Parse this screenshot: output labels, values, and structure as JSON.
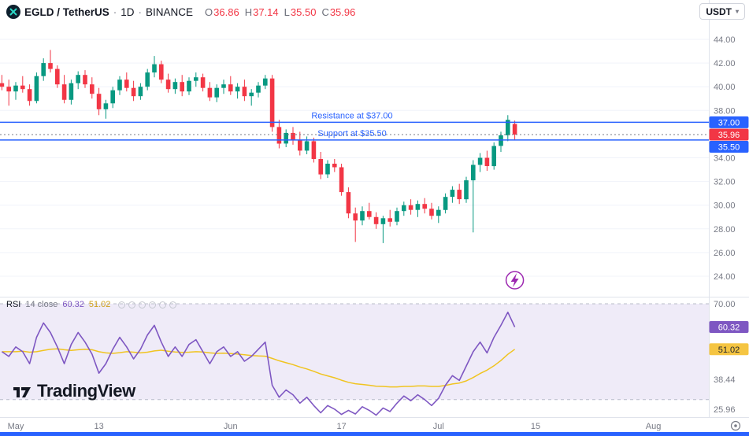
{
  "header": {
    "symbol": "EGLD / TetherUS",
    "dot1": "·",
    "interval": "1D",
    "dot2": "·",
    "exchange": "BINANCE",
    "ohlc": [
      {
        "label": "O",
        "value": "36.86"
      },
      {
        "label": "H",
        "value": "37.14"
      },
      {
        "label": "L",
        "value": "35.50"
      },
      {
        "label": "C",
        "value": "35.96"
      }
    ],
    "currency": "USDT"
  },
  "icons": {
    "chevron_down": "▾"
  },
  "rsi_header": {
    "title": "RSI",
    "params": "14 close",
    "value": "60.32",
    "ma_value": "51.02"
  },
  "watermark": "TradingView",
  "colors": {
    "up": "#089981",
    "down": "#f23645",
    "level": "#2962ff",
    "last_price_line": "#787b86",
    "grid": "#f0f3fa",
    "axis_text": "#787b86",
    "band_fill": "rgba(126,87,194,0.12)",
    "band_line": "#b8bcc9",
    "rsi": "#7e57c2",
    "rsi_ma": "#f0c420",
    "rsi_value_text": "#7e57c2",
    "rsi_ma_value_text": "#cfa019",
    "lightning": "#9c27b0",
    "accent_bar": "#2962ff"
  },
  "chart_data": {
    "type": "candlestick",
    "title": "EGLD / TetherUS · 1D · BINANCE",
    "interval": "1D",
    "last_price": 35.96,
    "levels": [
      {
        "label": "Resistance at $37.00",
        "value": 37.0
      },
      {
        "label": "Support at $35.50",
        "value": 35.5
      }
    ],
    "y_axis": {
      "ticks": [
        44,
        42,
        40,
        38,
        34,
        32,
        30,
        28,
        26,
        24
      ],
      "visible_range": [
        24,
        44
      ]
    },
    "x_axis": {
      "labels": [
        {
          "text": "May",
          "day": 0
        },
        {
          "text": "13",
          "day": 12
        },
        {
          "text": "Jun",
          "day": 31
        },
        {
          "text": "17",
          "day": 47
        },
        {
          "text": "Jul",
          "day": 61
        },
        {
          "text": "15",
          "day": 75
        },
        {
          "text": "Aug",
          "day": 92
        }
      ]
    },
    "price_badges": [
      {
        "text": "37.00",
        "value": 37.0,
        "bg": "#2962ff",
        "fg": "#ffffff"
      },
      {
        "text": "35.96",
        "value": 35.96,
        "bg": "#f23645",
        "fg": "#ffffff"
      },
      {
        "text": "35.50",
        "value": 35.5,
        "bg": "#2962ff",
        "fg": "#ffffff"
      }
    ],
    "rsi_badges": [
      {
        "text": "60.32",
        "value": 60.32,
        "bg": "#7e57c2",
        "fg": "#ffffff"
      },
      {
        "text": "51.02",
        "value": 51.02,
        "bg": "#f5c542",
        "fg": "#1e222d"
      }
    ],
    "candles_start_day": -2,
    "candles": [
      [
        40.3,
        41.0,
        39.7,
        40.0
      ],
      [
        40.0,
        40.6,
        38.4,
        39.6
      ],
      [
        39.6,
        40.4,
        38.9,
        40.1
      ],
      [
        40.1,
        40.9,
        39.5,
        39.8
      ],
      [
        39.8,
        40.2,
        38.4,
        38.8
      ],
      [
        38.8,
        41.2,
        38.6,
        40.9
      ],
      [
        40.9,
        42.4,
        40.5,
        42.0
      ],
      [
        42.0,
        43.1,
        41.2,
        41.5
      ],
      [
        41.5,
        41.8,
        39.9,
        40.2
      ],
      [
        40.2,
        41.0,
        38.6,
        38.9
      ],
      [
        38.9,
        40.6,
        38.5,
        40.3
      ],
      [
        40.3,
        41.3,
        39.8,
        41.0
      ],
      [
        41.0,
        41.4,
        39.9,
        40.2
      ],
      [
        40.2,
        40.8,
        39.0,
        39.4
      ],
      [
        39.4,
        39.9,
        37.6,
        38.1
      ],
      [
        38.1,
        38.9,
        37.3,
        38.6
      ],
      [
        38.6,
        40.0,
        38.2,
        39.7
      ],
      [
        39.7,
        40.9,
        39.3,
        40.6
      ],
      [
        40.6,
        41.2,
        39.6,
        39.9
      ],
      [
        39.9,
        40.5,
        38.8,
        39.2
      ],
      [
        39.2,
        40.3,
        38.9,
        40.0
      ],
      [
        40.0,
        41.5,
        39.7,
        41.2
      ],
      [
        41.2,
        42.6,
        40.8,
        41.9
      ],
      [
        41.9,
        42.2,
        40.3,
        40.6
      ],
      [
        40.6,
        41.1,
        39.5,
        39.8
      ],
      [
        39.8,
        40.7,
        39.4,
        40.4
      ],
      [
        40.4,
        41.0,
        39.2,
        39.6
      ],
      [
        39.6,
        40.8,
        39.3,
        40.5
      ],
      [
        40.5,
        41.2,
        40.0,
        40.8
      ],
      [
        40.8,
        41.1,
        39.6,
        39.9
      ],
      [
        39.9,
        40.4,
        38.8,
        39.1
      ],
      [
        39.1,
        40.2,
        38.7,
        39.9
      ],
      [
        39.9,
        40.6,
        39.4,
        40.2
      ],
      [
        40.2,
        40.9,
        39.3,
        39.6
      ],
      [
        39.6,
        40.3,
        39.0,
        40.0
      ],
      [
        40.0,
        40.6,
        38.8,
        39.2
      ],
      [
        39.2,
        39.8,
        38.4,
        39.5
      ],
      [
        39.5,
        40.4,
        39.1,
        40.1
      ],
      [
        40.1,
        41.0,
        39.8,
        40.7
      ],
      [
        40.7,
        41.0,
        36.2,
        36.6
      ],
      [
        36.6,
        37.2,
        34.8,
        35.2
      ],
      [
        35.2,
        36.4,
        34.9,
        36.1
      ],
      [
        36.1,
        36.6,
        35.1,
        35.5
      ],
      [
        35.5,
        36.2,
        34.2,
        34.6
      ],
      [
        34.6,
        35.8,
        34.3,
        35.4
      ],
      [
        35.4,
        35.7,
        33.6,
        33.9
      ],
      [
        33.9,
        34.5,
        32.2,
        32.6
      ],
      [
        32.6,
        33.8,
        32.3,
        33.5
      ],
      [
        33.5,
        33.9,
        32.8,
        33.2
      ],
      [
        33.2,
        33.5,
        30.8,
        31.1
      ],
      [
        31.1,
        31.5,
        28.9,
        29.3
      ],
      [
        29.3,
        29.8,
        26.9,
        28.7
      ],
      [
        28.7,
        29.9,
        28.3,
        29.5
      ],
      [
        29.5,
        30.2,
        28.8,
        29.0
      ],
      [
        29.0,
        29.4,
        28.0,
        28.4
      ],
      [
        28.4,
        29.1,
        26.8,
        28.9
      ],
      [
        28.9,
        29.6,
        28.2,
        28.6
      ],
      [
        28.6,
        29.8,
        28.3,
        29.5
      ],
      [
        29.5,
        30.3,
        29.1,
        30.0
      ],
      [
        30.0,
        30.5,
        29.2,
        29.6
      ],
      [
        29.6,
        30.4,
        29.0,
        30.1
      ],
      [
        30.1,
        30.6,
        29.3,
        29.7
      ],
      [
        29.7,
        30.2,
        28.8,
        29.1
      ],
      [
        29.1,
        29.9,
        28.5,
        29.6
      ],
      [
        29.6,
        31.0,
        29.3,
        30.7
      ],
      [
        30.7,
        31.6,
        30.2,
        31.3
      ],
      [
        31.3,
        31.8,
        30.1,
        30.5
      ],
      [
        30.5,
        32.4,
        30.2,
        32.1
      ],
      [
        32.1,
        33.8,
        27.7,
        33.4
      ],
      [
        33.4,
        34.4,
        32.8,
        34.0
      ],
      [
        34.0,
        34.6,
        32.9,
        33.3
      ],
      [
        33.3,
        35.3,
        33.0,
        35.0
      ],
      [
        35.0,
        36.2,
        34.5,
        35.9
      ],
      [
        35.9,
        37.6,
        35.4,
        37.2
      ],
      [
        36.86,
        37.14,
        35.5,
        35.96
      ]
    ],
    "rsi_pane": {
      "name": "RSI",
      "length": 14,
      "source": "close",
      "last_value": 60.32,
      "ma_last_value": 51.02,
      "band": [
        30,
        70
      ],
      "ticks": [
        70,
        38.44,
        25.96
      ],
      "values": [
        50,
        48,
        52,
        50,
        45,
        56,
        62,
        58,
        52,
        45,
        53,
        58,
        54,
        49,
        41,
        45,
        51,
        56,
        52,
        47,
        51,
        57,
        61,
        54,
        48,
        52,
        48,
        53,
        55,
        50,
        45,
        50,
        52,
        48,
        50,
        46,
        48,
        51,
        54,
        36,
        31,
        34,
        32,
        28.5,
        31,
        27.5,
        24.5,
        27.5,
        26,
        23.8,
        25.5,
        24,
        27,
        25.5,
        23.5,
        26.5,
        25,
        28.5,
        31.5,
        29.5,
        32,
        30,
        27.5,
        30.5,
        36,
        40,
        38,
        44,
        50,
        54,
        49.5,
        56,
        61,
        66.5,
        60.32
      ],
      "ma_values": [
        50,
        50,
        50,
        50.2,
        49.8,
        50,
        50.5,
        51,
        51.2,
        50.8,
        50.5,
        50.8,
        51,
        50.8,
        50,
        49.5,
        49.3,
        49.6,
        50,
        49.8,
        49.5,
        49.8,
        50.3,
        50.6,
        50.2,
        49.9,
        49.7,
        49.8,
        50,
        49.9,
        49.5,
        49.3,
        49.4,
        49.2,
        49,
        48.7,
        48.4,
        48.2,
        48.1,
        47.2,
        46.2,
        45.4,
        44.6,
        43.6,
        42.8,
        41.8,
        40.7,
        39.9,
        39.1,
        38.1,
        37.2,
        36.6,
        36.3,
        36,
        35.6,
        35.5,
        35.3,
        35.3,
        35.5,
        35.5,
        35.7,
        35.7,
        35.5,
        35.5,
        35.9,
        36.5,
        36.9,
        37.8,
        39.2,
        40.9,
        42.3,
        44.1,
        46.3,
        48.9,
        51.02
      ]
    }
  }
}
